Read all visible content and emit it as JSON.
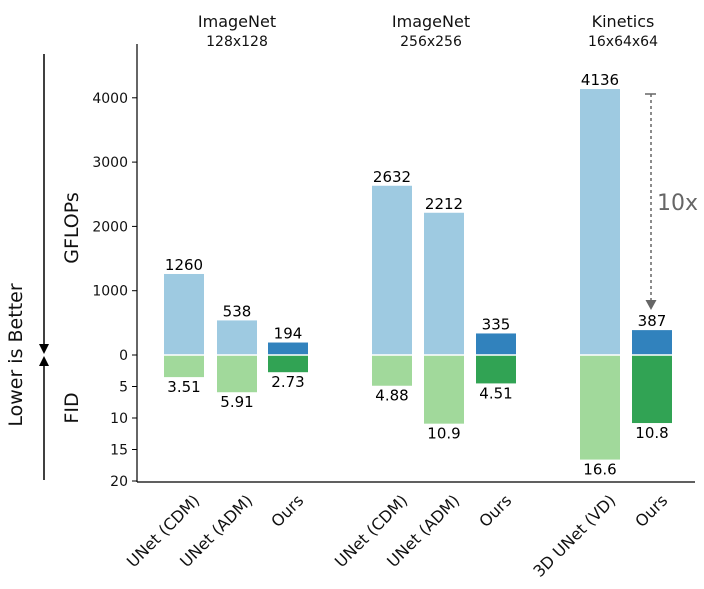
{
  "chart_data": {
    "type": "bar",
    "side_label": "Lower is Better",
    "top_axis_label": "GFLOPs",
    "bottom_axis_label": "FID",
    "top_ticks": [
      "4000",
      "3000",
      "2000",
      "1000",
      "0"
    ],
    "bottom_ticks": [
      "5",
      "10",
      "15",
      "20"
    ],
    "top_range": [
      0,
      4400
    ],
    "bottom_range": [
      0,
      20
    ],
    "annotation": "10x",
    "groups": [
      {
        "title": "ImageNet",
        "subtitle": "128x128",
        "bars": [
          {
            "label": "UNet (CDM)",
            "gflops": 1260,
            "gflops_text": "1260",
            "fid": 3.51,
            "fid_text": "3.51",
            "ours": false
          },
          {
            "label": "UNet (ADM)",
            "gflops": 538,
            "gflops_text": "538",
            "fid": 5.91,
            "fid_text": "5.91",
            "ours": false
          },
          {
            "label": "Ours",
            "gflops": 194,
            "gflops_text": "194",
            "fid": 2.73,
            "fid_text": "2.73",
            "ours": true
          }
        ]
      },
      {
        "title": "ImageNet",
        "subtitle": "256x256",
        "bars": [
          {
            "label": "UNet (CDM)",
            "gflops": 2632,
            "gflops_text": "2632",
            "fid": 4.88,
            "fid_text": "4.88",
            "ours": false
          },
          {
            "label": "UNet (ADM)",
            "gflops": 2212,
            "gflops_text": "2212",
            "fid": 10.9,
            "fid_text": "10.9",
            "ours": false
          },
          {
            "label": "Ours",
            "gflops": 335,
            "gflops_text": "335",
            "fid": 4.51,
            "fid_text": "4.51",
            "ours": true
          }
        ]
      },
      {
        "title": "Kinetics",
        "subtitle": "16x64x64",
        "bars": [
          {
            "label": "3D UNet (VD)",
            "gflops": 4136,
            "gflops_text": "4136",
            "fid": 16.6,
            "fid_text": "16.6",
            "ours": false
          },
          {
            "label": "Ours",
            "gflops": 387,
            "gflops_text": "387",
            "fid": 10.8,
            "fid_text": "10.8",
            "ours": true
          }
        ]
      }
    ],
    "colors": {
      "baseline_gflops": "#9ecae1",
      "baseline_fid": "#a1d99b",
      "ours_gflops": "#3182bd",
      "ours_fid": "#31a354",
      "annotation": "#666666"
    }
  }
}
